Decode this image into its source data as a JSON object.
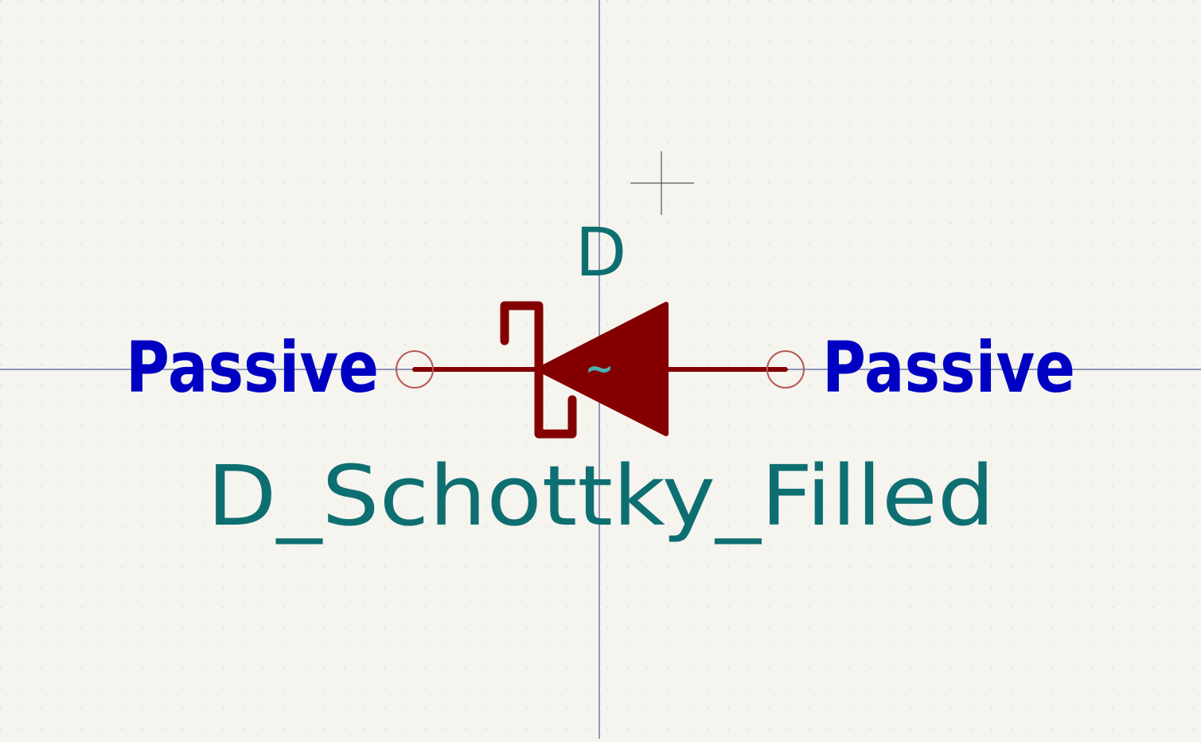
{
  "symbol": {
    "reference": "D",
    "value": "D_Schottky_Filled",
    "left_pin_type": "Passive",
    "right_pin_type": "Passive",
    "center_marker": "~"
  },
  "colors": {
    "background": "#f5f4ef",
    "grid_dot": "#d6d4cc",
    "axis": "#2a3a8a",
    "body": "#840000",
    "pin_end": "#b85a54",
    "field_text": "#0e6f72",
    "pin_type_text": "#0000c2",
    "marker": "#48b3b3",
    "cursor": "#222222"
  }
}
